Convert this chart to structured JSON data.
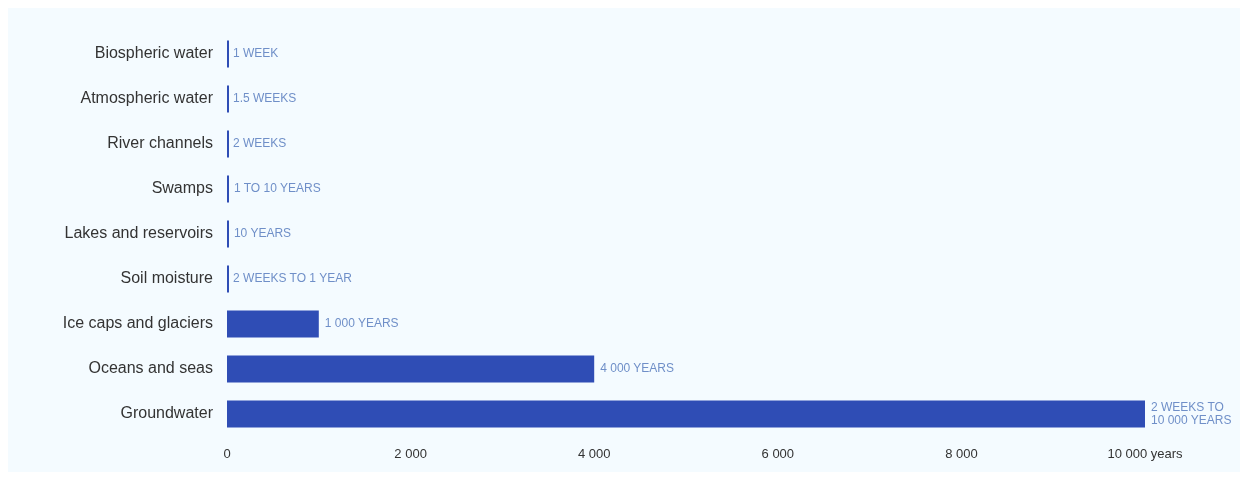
{
  "chart_data": {
    "type": "bar",
    "orientation": "horizontal",
    "categories": [
      "Biospheric water",
      "Atmospheric water",
      "River channels",
      "Swamps",
      "Lakes and reservoirs",
      "Soil moisture",
      "Ice caps and glaciers",
      "Oceans and seas",
      "Groundwater"
    ],
    "values": [
      0.02,
      0.03,
      0.04,
      10,
      10,
      1,
      1000,
      4000,
      10000
    ],
    "annotations": [
      {
        "text": "1 WEEK",
        "x": 0.02,
        "y": "Biospheric water"
      },
      {
        "text": "1.5 WEEKS",
        "x": 0.03,
        "y": "Atmospheric water"
      },
      {
        "text": "2 WEEKS",
        "x": 0.04,
        "y": "River channels"
      },
      {
        "text": "1 TO 10 YEARS",
        "x": 10,
        "y": "Swamps"
      },
      {
        "text": "10 YEARS",
        "x": 10,
        "y": "Lakes and reservoirs"
      },
      {
        "text": "2 WEEKS TO 1 YEAR",
        "x": 1,
        "y": "Soil moisture"
      },
      {
        "text": "1 000 YEARS",
        "x": 1000,
        "y": "Ice caps and glaciers"
      },
      {
        "text": "4 000 YEARS",
        "x": 4000,
        "y": "Oceans and seas"
      },
      {
        "text": "2 WEEKS TO 10 000 YEARS",
        "x": 10000,
        "y": "Groundwater"
      }
    ],
    "color": "#2f4db5",
    "xlim": [
      0,
      10000
    ],
    "xticks": [
      0,
      {
        "value": 2000,
        "label": "2 000"
      },
      {
        "value": 4000,
        "label": "4 000"
      },
      {
        "value": 6000,
        "label": "6 000"
      },
      {
        "value": 8000,
        "label": "8 000"
      },
      {
        "value": 10000,
        "label": "10 000 years"
      }
    ],
    "grid": false,
    "legend": false
  }
}
